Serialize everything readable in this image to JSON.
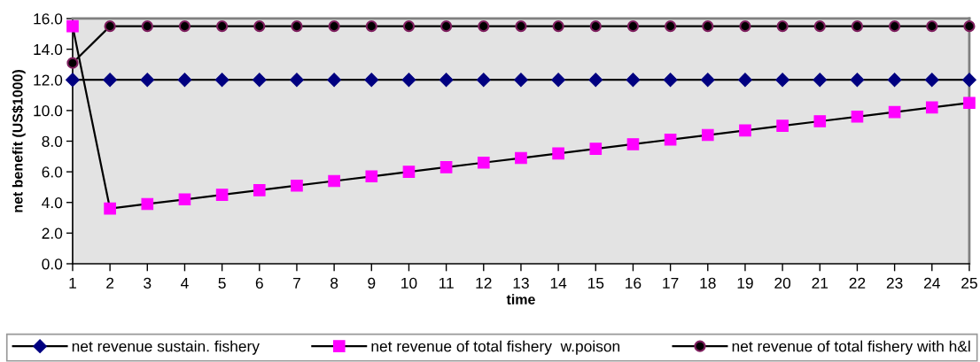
{
  "chart_data": {
    "type": "line",
    "xlabel": "time",
    "ylabel": "net benefit (US$1000)",
    "categories": [
      "1",
      "2",
      "3",
      "4",
      "5",
      "6",
      "7",
      "8",
      "9",
      "10",
      "11",
      "12",
      "13",
      "14",
      "15",
      "16",
      "17",
      "18",
      "19",
      "20",
      "21",
      "22",
      "23",
      "24",
      "25"
    ],
    "ylim": [
      0,
      16
    ],
    "yticks": [
      {
        "value": 0,
        "label": "0.0"
      },
      {
        "value": 2,
        "label": "2.0"
      },
      {
        "value": 4,
        "label": "4.0"
      },
      {
        "value": 6,
        "label": "6.0"
      },
      {
        "value": 8,
        "label": "8.0"
      },
      {
        "value": 10,
        "label": "10.0"
      },
      {
        "value": 12,
        "label": "12.0"
      },
      {
        "value": 14,
        "label": "14.0"
      },
      {
        "value": 16,
        "label": "16.0"
      }
    ],
    "grid": false,
    "legend": "bottom",
    "line_style": "solid",
    "series": [
      {
        "name": "net revenue sustain. fishery",
        "color": "#000080",
        "marker": "diamond",
        "values": [
          12.0,
          12.0,
          12.0,
          12.0,
          12.0,
          12.0,
          12.0,
          12.0,
          12.0,
          12.0,
          12.0,
          12.0,
          12.0,
          12.0,
          12.0,
          12.0,
          12.0,
          12.0,
          12.0,
          12.0,
          12.0,
          12.0,
          12.0,
          12.0,
          12.0
        ]
      },
      {
        "name": "net revenue of total fishery  w.poison",
        "color": "#ff00ff",
        "marker": "square",
        "values": [
          15.5,
          3.6,
          3.9,
          4.2,
          4.5,
          4.8,
          5.1,
          5.4,
          5.7,
          6.0,
          6.3,
          6.6,
          6.9,
          7.2,
          7.5,
          7.8,
          8.1,
          8.4,
          8.7,
          9.0,
          9.3,
          9.6,
          9.9,
          10.2,
          10.5
        ]
      },
      {
        "name": "net revenue of total fishery with h&l",
        "color": "#000000",
        "marker": "circle",
        "values": [
          13.1,
          15.5,
          15.5,
          15.5,
          15.5,
          15.5,
          15.5,
          15.5,
          15.5,
          15.5,
          15.5,
          15.5,
          15.5,
          15.5,
          15.5,
          15.5,
          15.5,
          15.5,
          15.5,
          15.5,
          15.5,
          15.5,
          15.5,
          15.5,
          15.5
        ]
      }
    ]
  }
}
